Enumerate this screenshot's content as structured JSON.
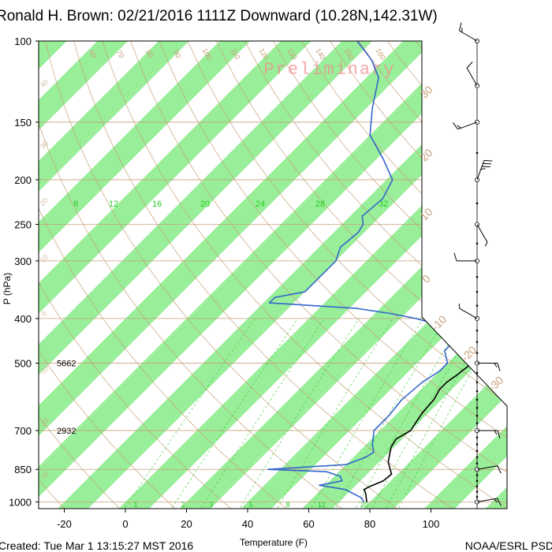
{
  "header": {
    "title": "Ronald H. Brown: 02/21/2016 1111Z Downward (10.28N,142.31W)"
  },
  "footer": {
    "created": "Created: Tue Mar  1 13:15:27 MST 2016",
    "credit": "NOAA/ESRL PSD"
  },
  "chart_data": {
    "type": "skew-t log-p sounding",
    "xlabel": "Temperature (F)",
    "ylabel": "P (hPa)",
    "watermark": "Preliminary",
    "x_ticks": [
      -20,
      0,
      20,
      40,
      60,
      80,
      100
    ],
    "y_ticks": [
      100,
      150,
      200,
      250,
      300,
      400,
      500,
      700,
      850,
      1000
    ],
    "y_scale": "log",
    "ylim": [
      1000,
      100
    ],
    "band_colors": {
      "green": "#99ee99",
      "white": "#ffffff"
    },
    "colors": {
      "temperature": "#000000",
      "dewpoint": "#3366cc",
      "adiabat": "#c8a07a",
      "mixing_ratio": "#33cc33",
      "frame": "#000000"
    },
    "mixing_ratio_labels_upper": [
      "8",
      "12",
      "16",
      "20",
      "24",
      "28",
      "32"
    ],
    "mixing_ratio_labels_lower": [
      "1",
      "2",
      "3",
      "5",
      "8",
      "12",
      "20"
    ],
    "adiabat_labels_top": [
      "60",
      "70",
      "80",
      "90",
      "100",
      "110",
      "120",
      "130",
      "140",
      "150",
      "160"
    ],
    "isotherm_labels_right": [
      "30",
      "20",
      "10",
      "0",
      "-10",
      "-20",
      "-30"
    ],
    "isotherm_labels_left": [
      "40",
      "30",
      "20",
      "10",
      "0",
      "-10",
      "-20",
      "-30"
    ],
    "height_annotations": [
      {
        "pressure": 500,
        "height": "5662"
      },
      {
        "pressure": 700,
        "height": "2932"
      }
    ],
    "series": [
      {
        "name": "Temperature",
        "points": [
          [
            1000,
            79
          ],
          [
            980,
            77.5
          ],
          [
            960,
            76
          ],
          [
            940,
            74
          ],
          [
            925,
            75
          ],
          [
            900,
            77.5
          ],
          [
            870,
            78
          ],
          [
            850,
            76
          ],
          [
            820,
            73
          ],
          [
            790,
            71
          ],
          [
            760,
            69
          ],
          [
            730,
            68
          ],
          [
            700,
            70
          ],
          [
            670,
            69
          ],
          [
            640,
            68
          ],
          [
            600,
            67.5
          ],
          [
            570,
            66
          ],
          [
            550,
            66
          ],
          [
            530,
            67
          ],
          [
            500,
            68
          ],
          [
            480,
            65
          ],
          [
            460,
            64.5
          ],
          [
            440,
            64
          ],
          [
            420,
            62
          ],
          [
            400,
            58
          ],
          [
            380,
            58
          ],
          [
            360,
            60
          ],
          [
            345,
            60
          ],
          [
            330,
            55
          ],
          [
            300,
            44
          ],
          [
            270,
            35
          ],
          [
            250,
            28
          ],
          [
            220,
            20
          ],
          [
            200,
            12
          ],
          [
            180,
            5
          ],
          [
            160,
            -4
          ],
          [
            140,
            -12
          ],
          [
            120,
            -22
          ],
          [
            110,
            -28
          ],
          [
            100,
            -34
          ]
        ]
      },
      {
        "name": "Dewpoint",
        "points": [
          [
            1000,
            78
          ],
          [
            980,
            76
          ],
          [
            950,
            70
          ],
          [
            940,
            68
          ],
          [
            920,
            58
          ],
          [
            900,
            64
          ],
          [
            880,
            62
          ],
          [
            860,
            56
          ],
          [
            850,
            36
          ],
          [
            830,
            60
          ],
          [
            800,
            64
          ],
          [
            780,
            65
          ],
          [
            750,
            62
          ],
          [
            700,
            58
          ],
          [
            650,
            58
          ],
          [
            600,
            57
          ],
          [
            550,
            58
          ],
          [
            520,
            60
          ],
          [
            500,
            60
          ],
          [
            470,
            55
          ],
          [
            440,
            55
          ],
          [
            420,
            50
          ],
          [
            400,
            35
          ],
          [
            390,
            25
          ],
          [
            380,
            12
          ],
          [
            370,
            -18
          ],
          [
            360,
            -18
          ],
          [
            350,
            -10
          ],
          [
            340,
            -10
          ],
          [
            330,
            -10
          ],
          [
            300,
            -10
          ],
          [
            280,
            -13
          ],
          [
            260,
            -12
          ],
          [
            250,
            -13
          ],
          [
            240,
            -16
          ],
          [
            220,
            -15
          ],
          [
            200,
            -18
          ],
          [
            180,
            -28
          ],
          [
            160,
            -40
          ],
          [
            140,
            -48
          ],
          [
            120,
            -56
          ],
          [
            110,
            -64
          ],
          [
            100,
            -75
          ]
        ]
      }
    ],
    "wind_barbs": [
      {
        "pressure": 1000,
        "direction_deg": 80,
        "speed_kt": 15
      },
      {
        "pressure": 850,
        "direction_deg": 80,
        "speed_kt": 10
      },
      {
        "pressure": 700,
        "direction_deg": 90,
        "speed_kt": 15
      },
      {
        "pressure": 500,
        "direction_deg": 90,
        "speed_kt": 15
      },
      {
        "pressure": 400,
        "direction_deg": 300,
        "speed_kt": 5
      },
      {
        "pressure": 300,
        "direction_deg": 270,
        "speed_kt": 10
      },
      {
        "pressure": 250,
        "direction_deg": 150,
        "speed_kt": 5
      },
      {
        "pressure": 200,
        "direction_deg": 20,
        "speed_kt": 35
      },
      {
        "pressure": 150,
        "direction_deg": 250,
        "speed_kt": 15
      },
      {
        "pressure": 125,
        "direction_deg": 330,
        "speed_kt": 10
      },
      {
        "pressure": 100,
        "direction_deg": 300,
        "speed_kt": 15
      }
    ]
  }
}
